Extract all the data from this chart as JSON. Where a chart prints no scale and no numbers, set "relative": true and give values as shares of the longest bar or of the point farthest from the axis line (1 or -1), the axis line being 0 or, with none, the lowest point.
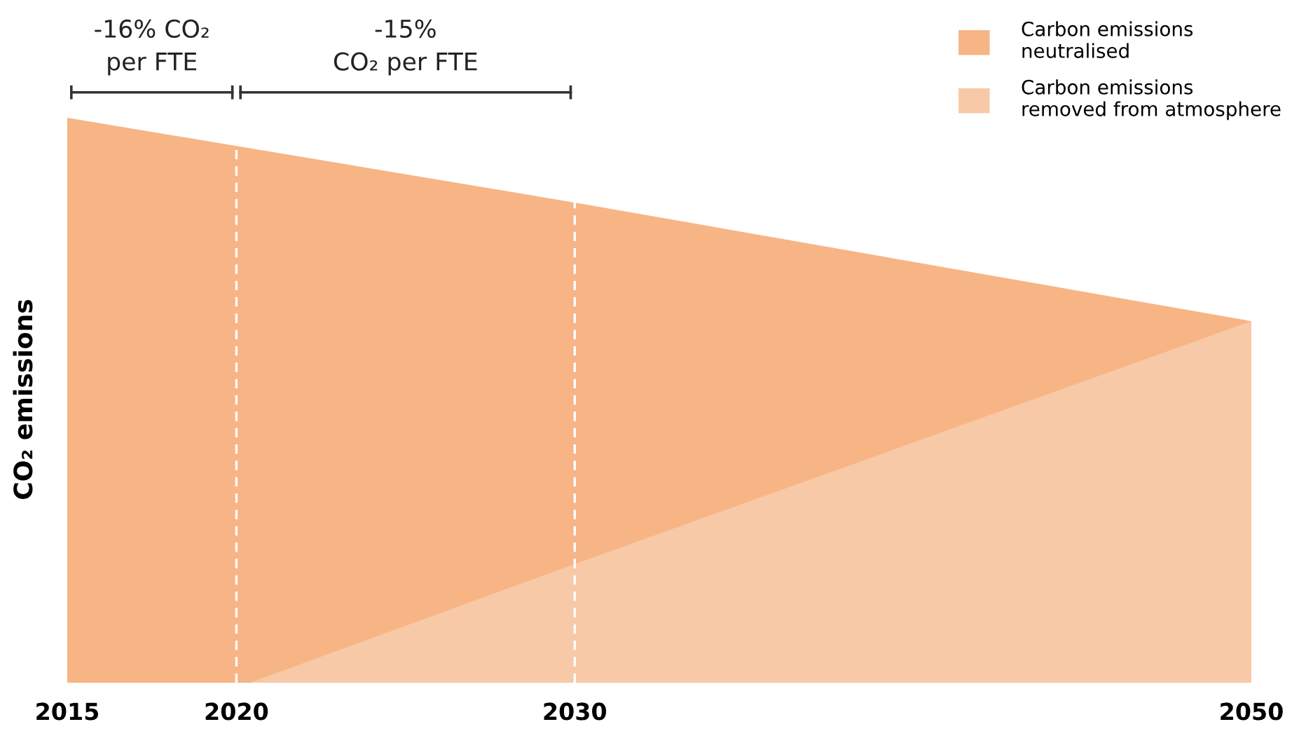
{
  "chart_data": {
    "type": "area",
    "relative": true,
    "ylabel": "CO₂ emissions",
    "x": [
      2015,
      2020,
      2030,
      2050
    ],
    "xlim": [
      2015,
      2050
    ],
    "xticks": [
      2015,
      2020,
      2030,
      2050
    ],
    "tick_labels": "x",
    "grid": false,
    "legend": "top right",
    "series": [
      {
        "name": "Carbon emissions\nneutralised",
        "color": "#f7b586",
        "values": [
          1,
          0.95,
          0.85,
          0.64
        ]
      },
      {
        "name": "Carbon emissions\nremoved from atmosphere",
        "color": "#f8c9a6",
        "x": [
          2020.4,
          2030,
          2050
        ],
        "values": [
          0,
          0.21,
          0.64
        ]
      }
    ],
    "ref_lines": [
      {
        "axis": "x",
        "value": 2020,
        "color": "#ffffff",
        "line_style": "dashed"
      },
      {
        "axis": "x",
        "value": 2030,
        "color": "#ffffff",
        "line_style": "dashed"
      }
    ],
    "annotations": [
      "-16% CO₂\nper FTE",
      "-15%\nCO₂ per FTE"
    ]
  }
}
